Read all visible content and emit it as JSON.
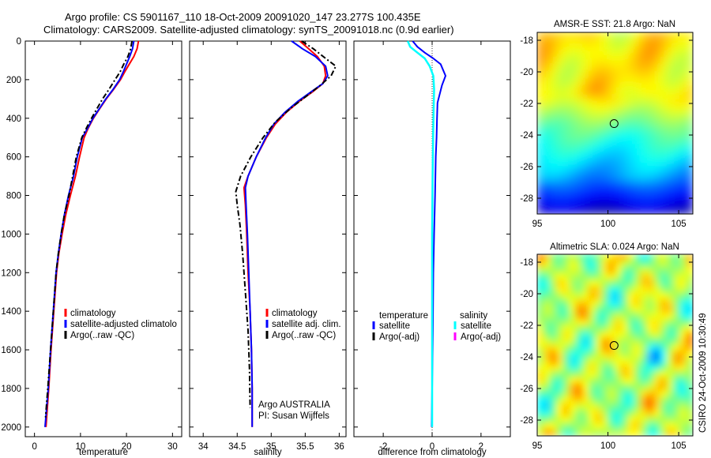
{
  "header": {
    "line1": "Argo profile: CS 5901167_110 18-Oct-2009 20091020_147 23.277S 100.435E",
    "line2": "Climatology: CARS2009. Satellite-adjusted climatology: synTS_20091018.nc (0.9d earlier)"
  },
  "footer": {
    "stamp": "CSIRO 24-Oct-2009 10:30:49"
  },
  "colors": {
    "red": "#ff0000",
    "blue": "#0000ff",
    "black": "#000000",
    "cyan": "#00ffff",
    "magenta": "#ff00ff"
  },
  "chart_data": [
    {
      "type": "line",
      "id": "temperature",
      "xlabel": "temperature",
      "xlim": [
        -2,
        32
      ],
      "ylim": [
        0,
        2050
      ],
      "y_reversed": true,
      "xticks": [
        0,
        10,
        20,
        30
      ],
      "yticks": [
        0,
        200,
        400,
        600,
        800,
        1000,
        1200,
        1400,
        1600,
        1800,
        2000
      ],
      "legend": [
        {
          "label": "climatology",
          "color": "#ff0000",
          "dash": "solid"
        },
        {
          "label": "satellite-adjusted climatolo",
          "color": "#0000ff",
          "dash": "solid"
        },
        {
          "label": "Argo(..raw -QC)",
          "color": "#000000",
          "dash": "dashdot"
        }
      ],
      "series": [
        {
          "name": "climatology",
          "color": "#ff0000",
          "width": 2,
          "dash": "solid",
          "points": [
            [
              22.6,
              0
            ],
            [
              22.3,
              40
            ],
            [
              21.6,
              80
            ],
            [
              20.6,
              120
            ],
            [
              19.6,
              160
            ],
            [
              18.7,
              200
            ],
            [
              17.2,
              250
            ],
            [
              15.6,
              300
            ],
            [
              14.2,
              350
            ],
            [
              12.8,
              400
            ],
            [
              11.7,
              450
            ],
            [
              10.8,
              500
            ],
            [
              9.8,
              600
            ],
            [
              8.9,
              700
            ],
            [
              7.8,
              800
            ],
            [
              6.8,
              900
            ],
            [
              6.0,
              1000
            ],
            [
              5.3,
              1100
            ],
            [
              4.8,
              1200
            ],
            [
              4.2,
              1400
            ],
            [
              3.6,
              1600
            ],
            [
              3.1,
              1800
            ],
            [
              2.5,
              2000
            ]
          ]
        },
        {
          "name": "satellite-adjusted",
          "color": "#0000ff",
          "width": 2,
          "dash": "solid",
          "points": [
            [
              21.6,
              0
            ],
            [
              21.3,
              40
            ],
            [
              20.7,
              80
            ],
            [
              20.0,
              120
            ],
            [
              19.3,
              160
            ],
            [
              18.5,
              200
            ],
            [
              17.1,
              250
            ],
            [
              15.5,
              300
            ],
            [
              14.1,
              350
            ],
            [
              12.7,
              400
            ],
            [
              11.6,
              450
            ],
            [
              10.4,
              500
            ],
            [
              9.3,
              600
            ],
            [
              8.5,
              700
            ],
            [
              7.4,
              800
            ],
            [
              6.5,
              900
            ],
            [
              5.8,
              1000
            ],
            [
              5.2,
              1100
            ],
            [
              4.7,
              1200
            ],
            [
              4.1,
              1400
            ],
            [
              3.5,
              1600
            ],
            [
              3.0,
              1800
            ],
            [
              2.3,
              2000
            ]
          ]
        },
        {
          "name": "Argo",
          "color": "#000000",
          "width": 2,
          "dash": "dashdot",
          "points": [
            [
              21.2,
              0
            ],
            [
              20.9,
              40
            ],
            [
              20.3,
              80
            ],
            [
              19.4,
              120
            ],
            [
              18.6,
              160
            ],
            [
              17.5,
              200
            ],
            [
              16.2,
              250
            ],
            [
              14.8,
              300
            ],
            [
              13.6,
              350
            ],
            [
              12.4,
              400
            ],
            [
              11.3,
              450
            ],
            [
              10.3,
              500
            ],
            [
              9.1,
              600
            ],
            [
              8.3,
              700
            ],
            [
              7.5,
              800
            ],
            [
              6.5,
              900
            ],
            [
              5.8,
              1000
            ],
            [
              5.2,
              1100
            ],
            [
              4.7,
              1200
            ],
            [
              4.1,
              1400
            ],
            [
              3.5,
              1600
            ],
            [
              2.9,
              1800
            ],
            [
              2.4,
              1950
            ]
          ]
        }
      ]
    },
    {
      "type": "line",
      "id": "salinity",
      "xlabel": "salinity",
      "xlim": [
        33.8,
        36.1
      ],
      "ylim": [
        0,
        2050
      ],
      "y_reversed": true,
      "xticks": [
        34,
        34.5,
        35,
        35.5,
        36
      ],
      "legend": [
        {
          "label": "climatology",
          "color": "#ff0000",
          "dash": "solid"
        },
        {
          "label": "satellite adj. clim.",
          "color": "#0000ff",
          "dash": "solid"
        },
        {
          "label": "Argo(..raw -QC)",
          "color": "#000000",
          "dash": "dashdot"
        }
      ],
      "annotation": {
        "line1": "Argo AUSTRALIA",
        "line2": "PI: Susan Wijffels"
      },
      "series": [
        {
          "name": "climatology",
          "color": "#ff0000",
          "width": 2,
          "dash": "solid",
          "points": [
            [
              35.42,
              0
            ],
            [
              35.55,
              40
            ],
            [
              35.68,
              80
            ],
            [
              35.78,
              130
            ],
            [
              35.8,
              180
            ],
            [
              35.76,
              220
            ],
            [
              35.62,
              260
            ],
            [
              35.42,
              310
            ],
            [
              35.22,
              370
            ],
            [
              35.06,
              430
            ],
            [
              34.93,
              500
            ],
            [
              34.78,
              600
            ],
            [
              34.66,
              700
            ],
            [
              34.6,
              760
            ],
            [
              34.62,
              850
            ],
            [
              34.64,
              1000
            ],
            [
              34.66,
              1200
            ],
            [
              34.69,
              1400
            ],
            [
              34.71,
              1600
            ],
            [
              34.72,
              1800
            ],
            [
              34.72,
              2000
            ]
          ]
        },
        {
          "name": "satellite-adjusted",
          "color": "#0000ff",
          "width": 2,
          "dash": "solid",
          "points": [
            [
              35.3,
              0
            ],
            [
              35.46,
              40
            ],
            [
              35.65,
              80
            ],
            [
              35.8,
              130
            ],
            [
              35.83,
              180
            ],
            [
              35.76,
              220
            ],
            [
              35.6,
              260
            ],
            [
              35.4,
              310
            ],
            [
              35.2,
              370
            ],
            [
              35.04,
              430
            ],
            [
              34.92,
              500
            ],
            [
              34.78,
              600
            ],
            [
              34.66,
              700
            ],
            [
              34.62,
              760
            ],
            [
              34.63,
              850
            ],
            [
              34.65,
              1000
            ],
            [
              34.67,
              1200
            ],
            [
              34.69,
              1400
            ],
            [
              34.71,
              1600
            ],
            [
              34.72,
              1800
            ],
            [
              34.72,
              2000
            ]
          ]
        },
        {
          "name": "Argo",
          "color": "#000000",
          "width": 2,
          "dash": "dashdot",
          "points": [
            [
              35.45,
              0
            ],
            [
              35.62,
              40
            ],
            [
              35.8,
              90
            ],
            [
              35.95,
              130
            ],
            [
              35.88,
              180
            ],
            [
              35.72,
              230
            ],
            [
              35.5,
              290
            ],
            [
              35.28,
              350
            ],
            [
              35.06,
              420
            ],
            [
              34.88,
              500
            ],
            [
              34.7,
              600
            ],
            [
              34.55,
              700
            ],
            [
              34.48,
              780
            ],
            [
              34.5,
              850
            ],
            [
              34.54,
              950
            ],
            [
              34.58,
              1100
            ],
            [
              34.62,
              1300
            ],
            [
              34.66,
              1500
            ],
            [
              34.68,
              1700
            ],
            [
              34.69,
              1900
            ]
          ]
        }
      ]
    },
    {
      "type": "line",
      "id": "difference",
      "xlabel": "difference from climatology",
      "xlim": [
        -3.2,
        3.2
      ],
      "ylim": [
        0,
        2050
      ],
      "y_reversed": true,
      "xticks": [
        -2,
        0,
        2
      ],
      "legend_left": {
        "title": "temperature",
        "items": [
          {
            "label": "satellite",
            "color": "#0000ff"
          },
          {
            "label": "Argo(-adj)",
            "color": "#000000"
          }
        ]
      },
      "legend_right": {
        "title": "salinity",
        "items": [
          {
            "label": "satellite",
            "color": "#00ffff"
          },
          {
            "label": "Argo(-adj)",
            "color": "#ff00ff"
          }
        ]
      },
      "series": [
        {
          "name": "temperature satellite",
          "color": "#0000ff",
          "width": 2,
          "dash": "solid",
          "points": [
            [
              -0.8,
              0
            ],
            [
              -0.6,
              30
            ],
            [
              -0.3,
              60
            ],
            [
              0.05,
              90
            ],
            [
              0.35,
              120
            ],
            [
              0.55,
              180
            ],
            [
              0.4,
              230
            ],
            [
              0.3,
              280
            ],
            [
              0.22,
              320
            ],
            [
              0.2,
              400
            ],
            [
              0.18,
              500
            ],
            [
              0.15,
              600
            ],
            [
              0.12,
              800
            ],
            [
              0.08,
              1000
            ],
            [
              0.05,
              1200
            ],
            [
              0.03,
              1500
            ],
            [
              0.0,
              1800
            ],
            [
              -0.02,
              2000
            ]
          ]
        },
        {
          "name": "salinity satellite",
          "color": "#00ffff",
          "width": 2.5,
          "dash": "solid",
          "points": [
            [
              -1.0,
              0
            ],
            [
              -0.9,
              30
            ],
            [
              -0.6,
              60
            ],
            [
              -0.3,
              90
            ],
            [
              -0.1,
              130
            ],
            [
              0.05,
              180
            ],
            [
              0.08,
              250
            ],
            [
              0.06,
              350
            ],
            [
              0.04,
              500
            ],
            [
              0.02,
              700
            ],
            [
              0.0,
              1000
            ],
            [
              0.0,
              1500
            ],
            [
              0.0,
              2000
            ]
          ]
        }
      ]
    },
    {
      "type": "heatmap",
      "id": "sst_map",
      "title": "AMSR-E SST: 21.8 Argo: NaN",
      "xlim": [
        95,
        106
      ],
      "ylim": [
        -29,
        -17.5
      ],
      "xticks": [
        95,
        100,
        105
      ],
      "yticks": [
        -18,
        -20,
        -22,
        -24,
        -26,
        -28
      ],
      "marker": {
        "lon": 100.435,
        "lat": -23.277
      }
    },
    {
      "type": "heatmap",
      "id": "sla_map",
      "title": "Altimetric SLA: 0.024 Argo: NaN",
      "xlim": [
        95,
        106
      ],
      "ylim": [
        -29,
        -17.5
      ],
      "xticks": [
        95,
        100,
        105
      ],
      "yticks": [
        -18,
        -20,
        -22,
        -24,
        -26,
        -28
      ],
      "marker": {
        "lon": 100.435,
        "lat": -23.277
      }
    }
  ]
}
